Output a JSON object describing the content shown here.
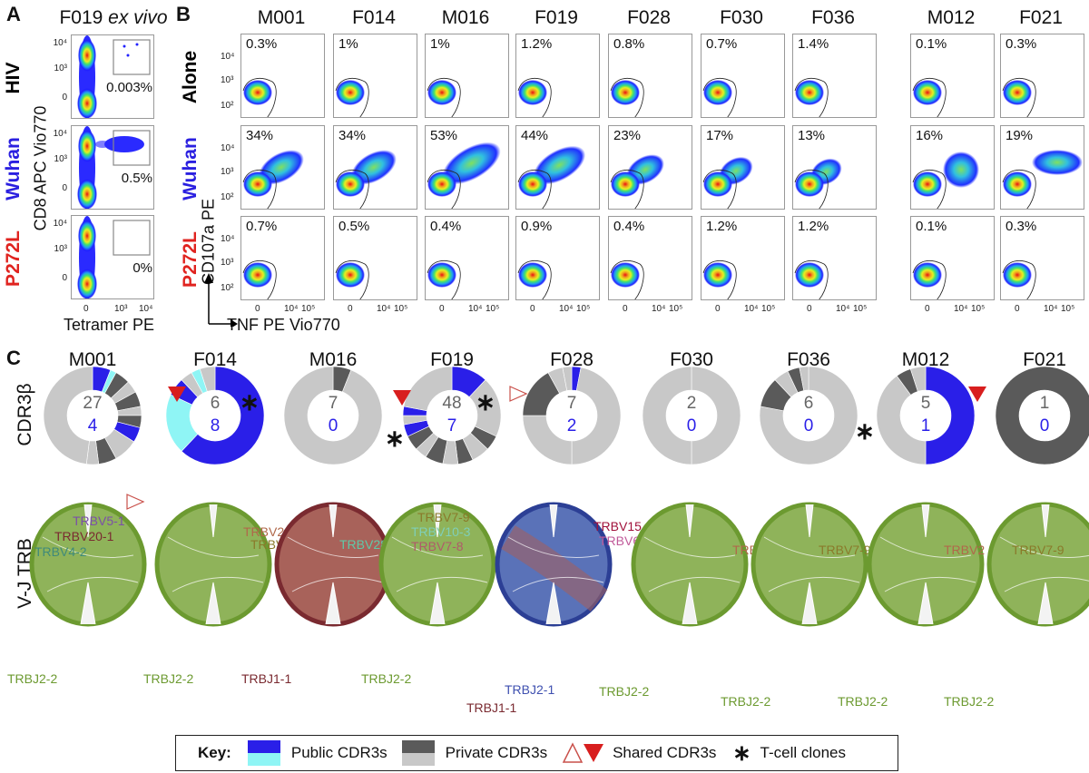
{
  "panel_a": {
    "label": "A",
    "title_main": "F019 ",
    "title_italic": "ex vivo",
    "rows": [
      {
        "label": "HIV",
        "color": "#000000",
        "pct": "0.003%"
      },
      {
        "label": "Wuhan",
        "color": "#2a1fe0",
        "pct": "0.5%"
      },
      {
        "label": "P272L",
        "color": "#e0231f",
        "pct": "0%"
      }
    ],
    "y_axis": "CD8 APC Vio770",
    "x_axis": "Tetramer PE",
    "y_ticks": [
      "10⁴",
      "10³",
      "0"
    ],
    "x_ticks": [
      "0",
      "10³",
      "10⁴"
    ]
  },
  "panel_b": {
    "label": "B",
    "donors": [
      "M001",
      "F014",
      "M016",
      "F019",
      "F028",
      "F030",
      "F036",
      "M012",
      "F021"
    ],
    "rows": [
      {
        "label": "Alone",
        "color": "#000000",
        "pcts": [
          "0.3%",
          "1%",
          "1%",
          "1.2%",
          "0.8%",
          "0.7%",
          "1.4%",
          "0.1%",
          "0.3%"
        ]
      },
      {
        "label": "Wuhan",
        "color": "#2a1fe0",
        "pcts": [
          "34%",
          "34%",
          "53%",
          "44%",
          "23%",
          "17%",
          "13%",
          "16%",
          "19%"
        ]
      },
      {
        "label": "P272L",
        "color": "#e0231f",
        "pcts": [
          "0.7%",
          "0.5%",
          "0.4%",
          "0.9%",
          "0.4%",
          "1.2%",
          "1.2%",
          "0.1%",
          "0.3%"
        ]
      }
    ],
    "y_axis": "CD107a PE",
    "x_axis": "TNF PE Vio770",
    "y_ticks": [
      "10⁴",
      "10³",
      "10²"
    ],
    "x_ticks": [
      "0",
      "10⁴",
      "10⁵"
    ]
  },
  "panel_c": {
    "label": "C",
    "row_cdr3": "CDR3β",
    "row_vj": "V-J TRB",
    "donuts": [
      {
        "donor": "M001",
        "private": "27",
        "public": "4",
        "segments": [
          [
            0.06,
            "pub"
          ],
          [
            0.02,
            "cyan"
          ],
          [
            0.05,
            "dark"
          ],
          [
            0.04,
            "light"
          ],
          [
            0.05,
            "dark"
          ],
          [
            0.03,
            "light"
          ],
          [
            0.04,
            "dark"
          ],
          [
            0.05,
            "pub"
          ],
          [
            0.08,
            "light"
          ],
          [
            0.06,
            "dark"
          ],
          [
            0.04,
            "light"
          ],
          [
            0.48,
            "light"
          ]
        ]
      },
      {
        "donor": "F014",
        "private": "6",
        "public": "8",
        "segments": [
          [
            0.62,
            "pub"
          ],
          [
            0.2,
            "cyan"
          ],
          [
            0.06,
            "pub"
          ],
          [
            0.04,
            "light"
          ],
          [
            0.03,
            "cyan"
          ],
          [
            0.05,
            "light"
          ]
        ]
      },
      {
        "donor": "M016",
        "private": "7",
        "public": "0",
        "segments": [
          [
            0.06,
            "dark"
          ],
          [
            0.94,
            "light"
          ]
        ]
      },
      {
        "donor": "F019",
        "private": "48",
        "public": "7",
        "segments": [
          [
            0.12,
            "pub"
          ],
          [
            0.2,
            "light"
          ],
          [
            0.05,
            "dark"
          ],
          [
            0.06,
            "light"
          ],
          [
            0.05,
            "dark"
          ],
          [
            0.05,
            "light"
          ],
          [
            0.06,
            "dark"
          ],
          [
            0.04,
            "light"
          ],
          [
            0.05,
            "dark"
          ],
          [
            0.04,
            "pub"
          ],
          [
            0.03,
            "light"
          ],
          [
            0.03,
            "pub"
          ],
          [
            0.22,
            "light"
          ]
        ]
      },
      {
        "donor": "F028",
        "private": "7",
        "public": "2",
        "segments": [
          [
            0.03,
            "pub"
          ],
          [
            0.47,
            "light"
          ],
          [
            0.25,
            "light"
          ],
          [
            0.17,
            "dark"
          ],
          [
            0.05,
            "light"
          ],
          [
            0.03,
            "light"
          ]
        ]
      },
      {
        "donor": "F030",
        "private": "2",
        "public": "0",
        "segments": [
          [
            0.5,
            "light"
          ],
          [
            0.5,
            "light"
          ]
        ]
      },
      {
        "donor": "F036",
        "private": "6",
        "public": "0",
        "segments": [
          [
            0.78,
            "light"
          ],
          [
            0.1,
            "dark"
          ],
          [
            0.05,
            "light"
          ],
          [
            0.04,
            "dark"
          ],
          [
            0.03,
            "light"
          ]
        ]
      },
      {
        "donor": "M012",
        "private": "5",
        "public": "1",
        "segments": [
          [
            0.5,
            "pub"
          ],
          [
            0.4,
            "light"
          ],
          [
            0.05,
            "dark"
          ],
          [
            0.05,
            "light"
          ]
        ]
      },
      {
        "donor": "F021",
        "private": "1",
        "public": "0",
        "segments": [
          [
            1.0,
            "dark"
          ]
        ]
      }
    ],
    "chords": [
      {
        "donor": "M001",
        "main": "#8fb35a",
        "ring": "#6c9a30",
        "labels": [
          {
            "t": "TRBV5-1",
            "c": "#7b4fa8"
          },
          {
            "t": "TRBV20-1",
            "c": "#7a2a30"
          },
          {
            "t": "TRBV4-2",
            "c": "#3f8a7a"
          },
          {
            "t": "TRBJ2-2",
            "c": "#6c9a30"
          }
        ]
      },
      {
        "donor": "F014",
        "main": "#8fb35a",
        "ring": "#6c9a30",
        "labels": [
          {
            "t": "TRBV2",
            "c": "#b0684a"
          },
          {
            "t": "TRBV7-9",
            "c": "#8a7a2a"
          },
          {
            "t": "TRBJ2-2",
            "c": "#6c9a30"
          }
        ]
      },
      {
        "donor": "M016",
        "main": "#a8625a",
        "ring": "#7a2a30",
        "labels": [
          {
            "t": "TRBV28",
            "c": "#5fc9a8"
          },
          {
            "t": "TRBJ1-1",
            "c": "#7a2a30"
          }
        ]
      },
      {
        "donor": "F019",
        "main": "#8fb35a",
        "ring": "#6c9a30",
        "labels": [
          {
            "t": "TRBV7-9",
            "c": "#8a7a2a"
          },
          {
            "t": "TRBV10-3",
            "c": "#7fcfb8"
          },
          {
            "t": "TRBV7-8",
            "c": "#b05a6a"
          },
          {
            "t": "TRBJ2-2",
            "c": "#6c9a30"
          }
        ]
      },
      {
        "donor": "F028",
        "main": "#5a72b8",
        "ring": "#2c3f95",
        "labels": [
          {
            "t": "TRBV15",
            "c": "#a0103a"
          },
          {
            "t": "TRBV6-3",
            "c": "#c05a9a"
          },
          {
            "t": "TRBJ2-1",
            "c": "#3f50b0"
          },
          {
            "t": "TRBJ1-1",
            "c": "#7a2a30"
          }
        ]
      },
      {
        "donor": "F030",
        "main": "#8fb35a",
        "ring": "#6c9a30",
        "labels": [
          {
            "t": "TRBV2",
            "c": "#b0684a"
          },
          {
            "t": "TRBJ2-2",
            "c": "#6c9a30"
          }
        ]
      },
      {
        "donor": "F036",
        "main": "#8fb35a",
        "ring": "#6c9a30",
        "labels": [
          {
            "t": "TRBV7-9",
            "c": "#8a7a2a"
          },
          {
            "t": "TRBJ2-2",
            "c": "#6c9a30"
          }
        ]
      },
      {
        "donor": "M012",
        "main": "#8fb35a",
        "ring": "#6c9a30",
        "labels": [
          {
            "t": "TRBV2",
            "c": "#b0684a"
          },
          {
            "t": "TRBJ2-2",
            "c": "#6c9a30"
          }
        ]
      },
      {
        "donor": "F021",
        "main": "#8fb35a",
        "ring": "#6c9a30",
        "labels": [
          {
            "t": "TRBV7-9",
            "c": "#8a7a2a"
          },
          {
            "t": "TRBJ2-2",
            "c": "#6c9a30"
          }
        ]
      }
    ]
  },
  "key": {
    "title": "Key:",
    "public": "Public CDR3s",
    "private": "Private CDR3s",
    "shared": "Shared CDR3s",
    "clones": "T-cell clones",
    "clone_symbol": "∗"
  },
  "colors": {
    "pub": "#2a1fe8",
    "cyan": "#8ff5f5",
    "dark": "#5a5a5a",
    "light": "#c8c8c8",
    "grey_num": "#666666",
    "blue_num": "#2a1fe8",
    "shared_red": "#d81e1e"
  }
}
